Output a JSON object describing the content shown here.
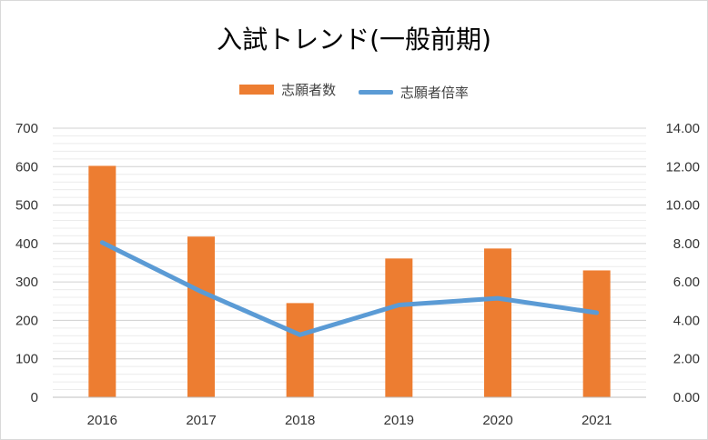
{
  "chart_data": {
    "type": "bar",
    "title": "入試トレンド(一般前期)",
    "categories": [
      "2016",
      "2017",
      "2018",
      "2019",
      "2020",
      "2021"
    ],
    "series": [
      {
        "name": "志願者数",
        "type": "bar",
        "axis": "left",
        "color": "#ED7D31",
        "values": [
          602,
          418,
          245,
          361,
          387,
          330
        ]
      },
      {
        "name": "志願者倍率",
        "type": "line",
        "axis": "right",
        "color": "#5B9BD5",
        "values": [
          8.05,
          5.5,
          3.25,
          4.8,
          5.15,
          4.4
        ]
      }
    ],
    "y_left": {
      "min": 0,
      "max": 700,
      "ticks": [
        "0",
        "100",
        "200",
        "300",
        "400",
        "500",
        "600",
        "700"
      ]
    },
    "y_right": {
      "min": 0,
      "max": 14,
      "ticks": [
        "0.00",
        "2.00",
        "4.00",
        "6.00",
        "8.00",
        "10.00",
        "12.00",
        "14.00"
      ]
    },
    "grid": true,
    "legend_position": "top"
  }
}
